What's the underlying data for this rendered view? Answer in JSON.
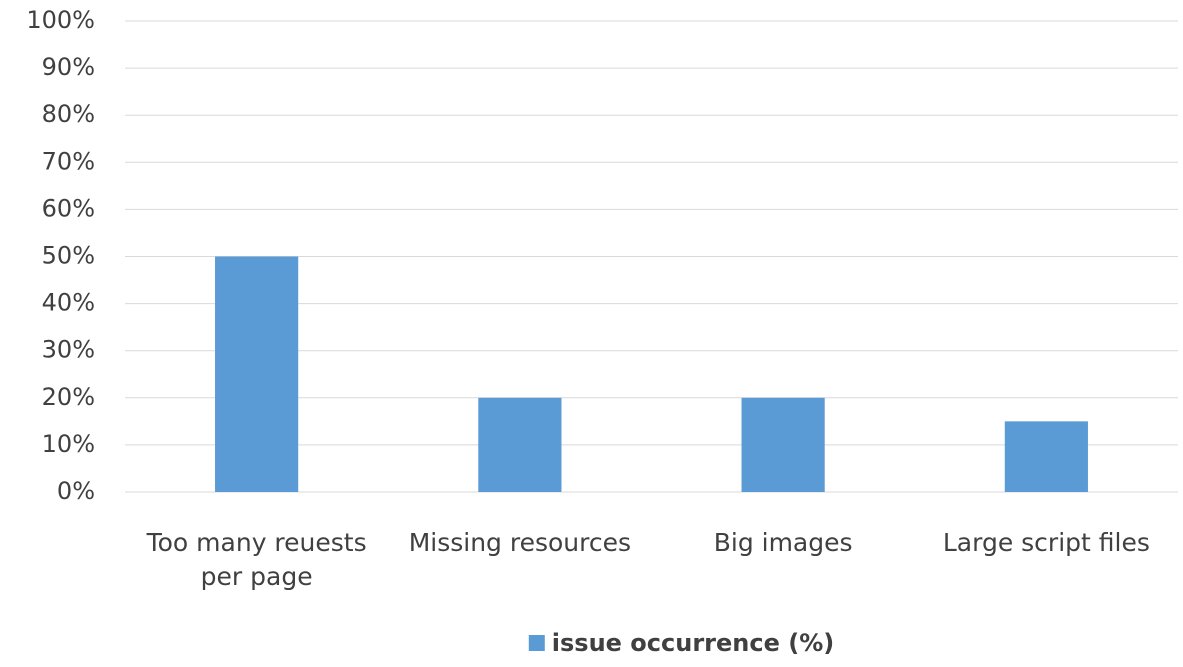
{
  "chart_data": {
    "type": "bar",
    "categories": [
      "Too many reuests per page",
      "Missing resources",
      "Big images",
      "Large script files"
    ],
    "series": [
      {
        "name": "issue occurrence (%)",
        "color": "#5b9bd5",
        "values": [
          50,
          20,
          20,
          15
        ]
      }
    ],
    "ylim": [
      0,
      100
    ],
    "yticks": [
      {
        "value": 0,
        "label": "0%"
      },
      {
        "value": 10,
        "label": "10%"
      },
      {
        "value": 20,
        "label": "20%"
      },
      {
        "value": 30,
        "label": "30%"
      },
      {
        "value": 40,
        "label": "40%"
      },
      {
        "value": 50,
        "label": "50%"
      },
      {
        "value": 60,
        "label": "60%"
      },
      {
        "value": 70,
        "label": "70%"
      },
      {
        "value": 80,
        "label": "80%"
      },
      {
        "value": 90,
        "label": "90%"
      },
      {
        "value": 100,
        "label": "100%"
      }
    ],
    "grid": true,
    "legend": "bottom"
  }
}
